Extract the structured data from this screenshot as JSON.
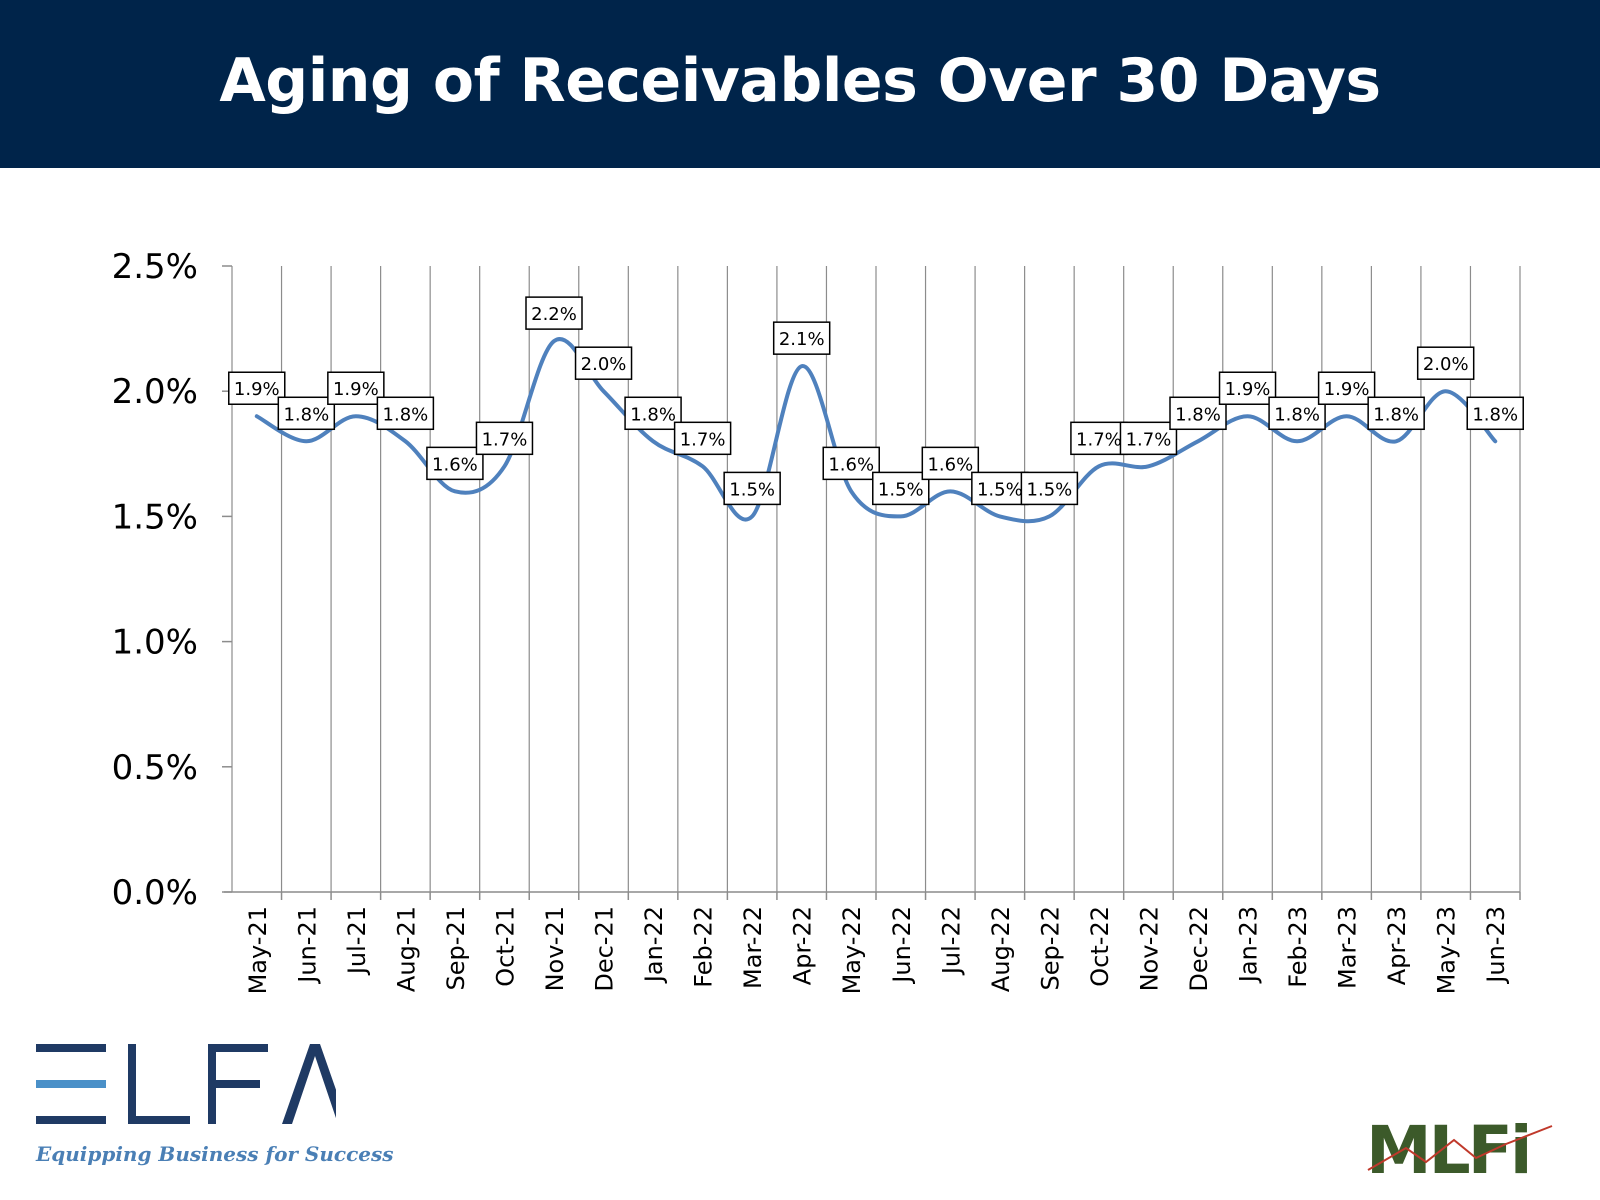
{
  "header": {
    "title": "Aging of Receivables Over 30 Days"
  },
  "colors": {
    "header_bg": "#00244a",
    "line": "#4f81bd",
    "grid": "#8c8c8c",
    "label_border": "#000000"
  },
  "chart_data": {
    "type": "line",
    "title": "Aging of Receivables Over 30 Days",
    "xlabel": "",
    "ylabel": "",
    "ylim": [
      0,
      0.025
    ],
    "yticks": [
      "0.0%",
      "0.5%",
      "1.0%",
      "1.5%",
      "2.0%",
      "2.5%"
    ],
    "ytick_values": [
      0,
      0.005,
      0.01,
      0.015,
      0.02,
      0.025
    ],
    "grid": "vertical",
    "smooth": true,
    "categories": [
      "May-21",
      "Jun-21",
      "Jul-21",
      "Aug-21",
      "Sep-21",
      "Oct-21",
      "Nov-21",
      "Dec-21",
      "Jan-22",
      "Feb-22",
      "Mar-22",
      "Apr-22",
      "May-22",
      "Jun-22",
      "Jul-22",
      "Aug-22",
      "Sep-22",
      "Oct-22",
      "Nov-22",
      "Dec-22",
      "Jan-23",
      "Feb-23",
      "Mar-23",
      "Apr-23",
      "May-23",
      "Jun-23"
    ],
    "series": [
      {
        "values": [
          0.019,
          0.018,
          0.019,
          0.018,
          0.016,
          0.017,
          0.022,
          0.02,
          0.018,
          0.017,
          0.015,
          0.021,
          0.016,
          0.015,
          0.016,
          0.015,
          0.015,
          0.017,
          0.017,
          0.018,
          0.019,
          0.018,
          0.019,
          0.018,
          0.02,
          0.018
        ],
        "data_labels": [
          "1.9%",
          "1.8%",
          "1.9%",
          "1.8%",
          "1.6%",
          "1.7%",
          "2.2%",
          "2.0%",
          "1.8%",
          "1.7%",
          "1.5%",
          "2.1%",
          "1.6%",
          "1.5%",
          "1.6%",
          "1.5%",
          "1.5%",
          "1.7%",
          "1.7%",
          "1.8%",
          "1.9%",
          "1.8%",
          "1.9%",
          "1.8%",
          "2.0%",
          "1.8%"
        ]
      }
    ]
  },
  "logos": {
    "elfa": {
      "wordmark": "ELFA",
      "tagline": "Equipping Business for Success"
    },
    "mlfi": {
      "wordmark": "MLFi"
    }
  }
}
